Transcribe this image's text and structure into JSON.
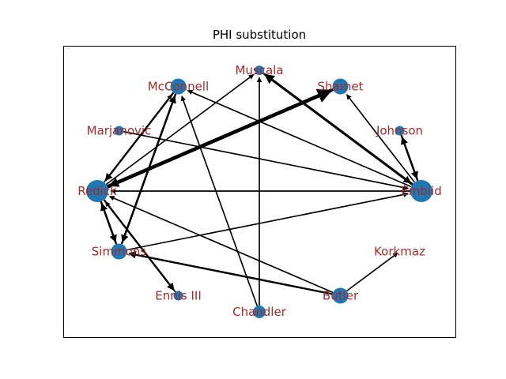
{
  "chart_data": {
    "type": "network",
    "title": "PHI substitution",
    "colors": {
      "node": "#1f77b4",
      "label": "#a52a2a",
      "edge": "#000000",
      "frame": "#000000",
      "background": "#ffffff"
    },
    "nodes": [
      {
        "id": "Muscala",
        "label": "Muscala",
        "size_rank": 1
      },
      {
        "id": "McConnell",
        "label": "McConnell",
        "size_rank": 3
      },
      {
        "id": "Shamet",
        "label": "Shamet",
        "size_rank": 3
      },
      {
        "id": "Marjanovic",
        "label": "Marjanovic",
        "size_rank": 1
      },
      {
        "id": "Johnson",
        "label": "Johnson",
        "size_rank": 1
      },
      {
        "id": "Redick",
        "label": "Redick",
        "size_rank": 5
      },
      {
        "id": "Embiid",
        "label": "Embiid",
        "size_rank": 5
      },
      {
        "id": "Simmons",
        "label": "Simmons",
        "size_rank": 3
      },
      {
        "id": "Korkmaz",
        "label": "Korkmaz",
        "size_rank": 0
      },
      {
        "id": "Ennis III",
        "label": "Ennis III",
        "size_rank": 1
      },
      {
        "id": "Butler",
        "label": "Butler",
        "size_rank": 3
      },
      {
        "id": "Chandler",
        "label": "Chandler",
        "size_rank": 2
      }
    ],
    "edges": [
      {
        "source": "Redick",
        "target": "Shamet",
        "weight": 5
      },
      {
        "source": "Shamet",
        "target": "Redick",
        "weight": 3
      },
      {
        "source": "Embiid",
        "target": "Muscala",
        "weight": 3
      },
      {
        "source": "Muscala",
        "target": "Embiid",
        "weight": 2
      },
      {
        "source": "Embiid",
        "target": "Johnson",
        "weight": 2
      },
      {
        "source": "Johnson",
        "target": "Embiid",
        "weight": 2
      },
      {
        "source": "Embiid",
        "target": "Shamet",
        "weight": 1
      },
      {
        "source": "Embiid",
        "target": "McConnell",
        "weight": 1
      },
      {
        "source": "Marjanovic",
        "target": "Embiid",
        "weight": 1
      },
      {
        "source": "Simmons",
        "target": "Embiid",
        "weight": 1
      },
      {
        "source": "Embiid",
        "target": "Redick",
        "weight": 1
      },
      {
        "source": "Redick",
        "target": "Muscala",
        "weight": 1
      },
      {
        "source": "Chandler",
        "target": "Muscala",
        "weight": 1
      },
      {
        "source": "Chandler",
        "target": "McConnell",
        "weight": 1
      },
      {
        "source": "McConnell",
        "target": "Redick",
        "weight": 2
      },
      {
        "source": "Redick",
        "target": "McConnell",
        "weight": 1
      },
      {
        "source": "McConnell",
        "target": "Simmons",
        "weight": 2
      },
      {
        "source": "Simmons",
        "target": "McConnell",
        "weight": 2
      },
      {
        "source": "Redick",
        "target": "Simmons",
        "weight": 2
      },
      {
        "source": "Simmons",
        "target": "Redick",
        "weight": 2
      },
      {
        "source": "Redick",
        "target": "Ennis III",
        "weight": 2
      },
      {
        "source": "Ennis III",
        "target": "Redick",
        "weight": 1
      },
      {
        "source": "Butler",
        "target": "Simmons",
        "weight": 2
      },
      {
        "source": "Butler",
        "target": "Redick",
        "weight": 1
      },
      {
        "source": "Butler",
        "target": "Korkmaz",
        "weight": 1
      }
    ]
  }
}
